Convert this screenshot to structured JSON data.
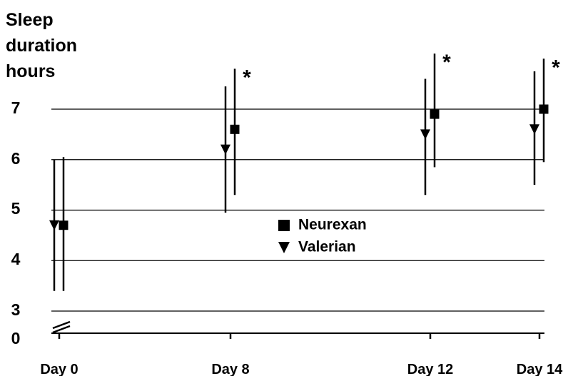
{
  "chart_data": {
    "type": "scatter",
    "ylabel": [
      "Sleep",
      "duration",
      "hours"
    ],
    "categories": [
      "Day 0",
      "Day 8",
      "Day 12",
      "Day 14"
    ],
    "y_ticks": [
      "7",
      "6",
      "5",
      "4",
      "3",
      "0"
    ],
    "ylim": [
      3,
      7.5
    ],
    "axis_break": true,
    "grid": true,
    "legend_position": "center",
    "significance_marker": "*",
    "series": [
      {
        "name": "Valerian",
        "marker": "triangle-down",
        "values": [
          4.7,
          6.2,
          6.5,
          6.6
        ],
        "error_low": [
          3.4,
          4.95,
          5.3,
          5.5
        ],
        "error_high": [
          6.0,
          7.45,
          7.6,
          7.75
        ]
      },
      {
        "name": "Neurexan",
        "marker": "square",
        "values": [
          4.7,
          6.6,
          6.9,
          7.0
        ],
        "error_low": [
          3.4,
          5.3,
          5.85,
          5.95
        ],
        "error_high": [
          6.05,
          7.8,
          8.1,
          8.0
        ],
        "significant": [
          false,
          true,
          true,
          true
        ]
      }
    ]
  }
}
